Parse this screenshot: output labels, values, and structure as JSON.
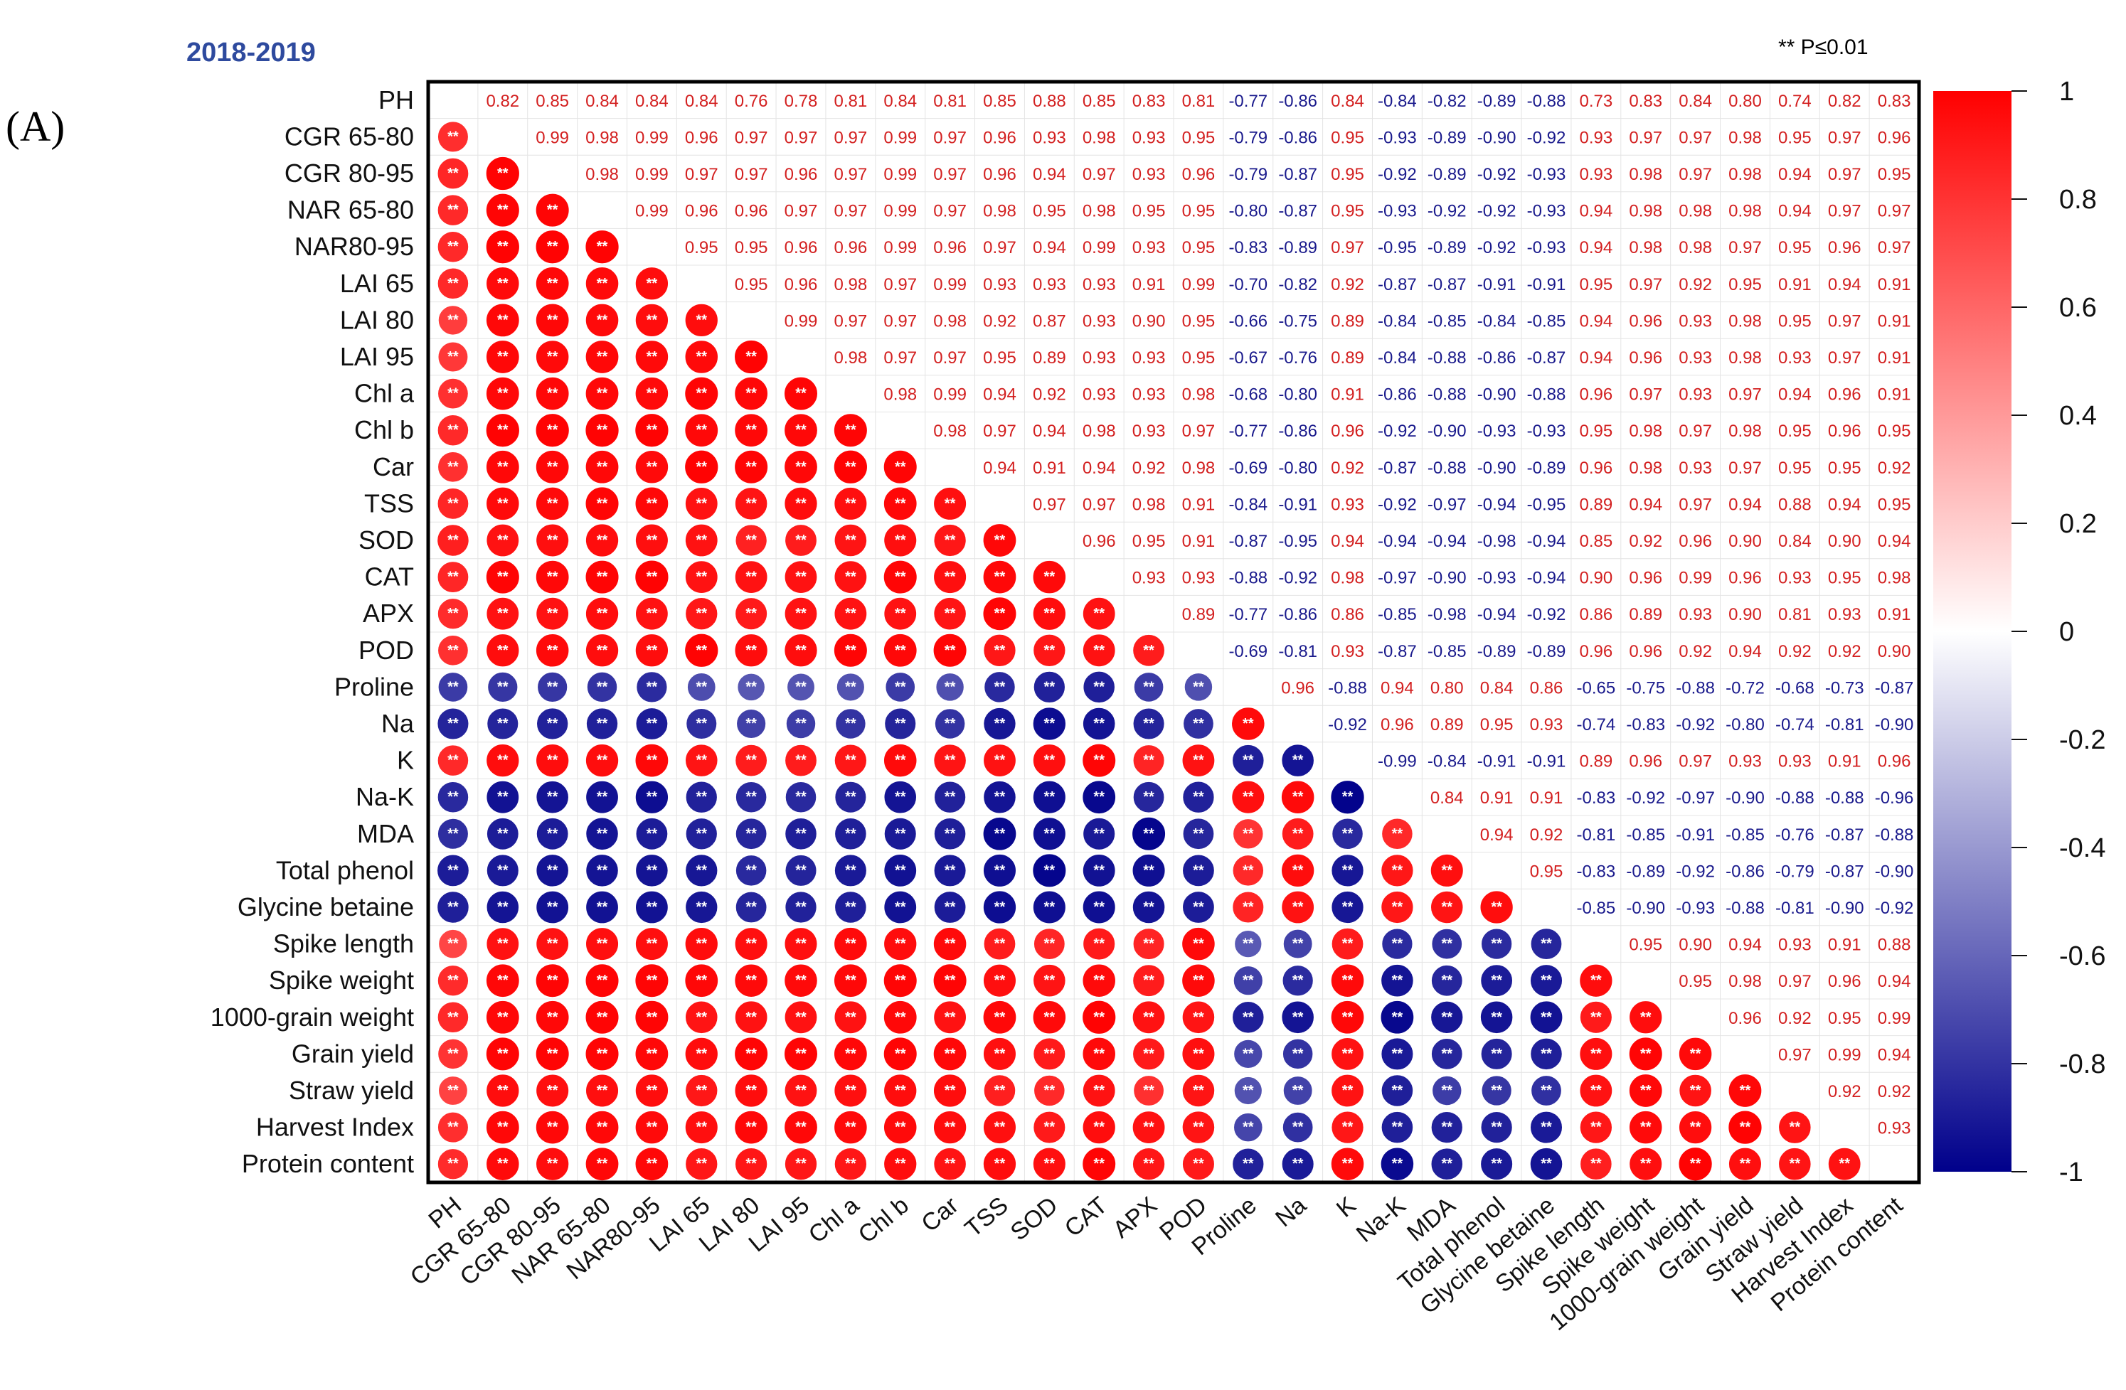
{
  "figure": {
    "panel_label": "(A)",
    "season": "2018-2019",
    "significance_note": "** P≤0.01",
    "season_color": "#2e4a9e",
    "positive_color": "#ff0000",
    "negative_color": "#00008b"
  },
  "chart_data": {
    "type": "heatmap",
    "subtype": "correlation-matrix",
    "title": "2018-2019",
    "legend": "colorbar-right",
    "colorbar_ticks": [
      "1",
      "0.8",
      "0.6",
      "0.4",
      "0.2",
      "0",
      "-0.2",
      "-0.4",
      "-0.6",
      "-0.8",
      "-1"
    ],
    "colorbar_range": [
      -1,
      1
    ],
    "variables": [
      "PH",
      "CGR  65-80",
      "CGR 80-95",
      "NAR 65-80",
      "NAR80-95",
      "LAI 65",
      "LAI 80",
      "LAI 95",
      "Chl a",
      "Chl b",
      "Car",
      "TSS",
      "SOD",
      "CAT",
      "APX",
      "POD",
      "Proline",
      "Na",
      "K",
      "Na-K",
      "MDA",
      "Total phenol",
      "Glycine betaine",
      "Spike length",
      "Spike weight",
      "1000-grain weight",
      "Grain yield",
      "Straw yield",
      "Harvest Index",
      "Protein content"
    ],
    "column_labels": [
      "PH",
      "CGR 65-80",
      "CGR 80-95",
      "NAR 65-80",
      "NAR80-95",
      "LAI 65",
      "LAI 80",
      "LAI 95",
      "Chl a",
      "Chl b",
      "Car",
      "TSS",
      "SOD",
      "CAT",
      "APX",
      "POD",
      "Proline",
      "Na",
      "K",
      "Na-K",
      "MDA",
      "Total phenol",
      "Glycine betaine",
      "Spike length",
      "Spike weight",
      "1000-grain weight",
      "Grain yield",
      "Straw yield",
      "Harvest Index",
      "Protein content"
    ],
    "upper_triangle_rows": [
      [
        "0.82",
        "0.85",
        "0.84",
        "0.84",
        "0.84",
        "0.76",
        "0.78",
        "0.81",
        "0.84",
        "0.81",
        "0.85",
        "0.88",
        "0.85",
        "0.83",
        "0.81",
        "-0.77",
        "-0.86",
        "0.84",
        "-0.84",
        "-0.82",
        "-0.89",
        "-0.88",
        "0.73",
        "0.83",
        "0.84",
        "0.80",
        "0.74",
        "0.82",
        "0.83"
      ],
      [
        "0.99",
        "0.98",
        "0.99",
        "0.96",
        "0.97",
        "0.97",
        "0.97",
        "0.99",
        "0.97",
        "0.96",
        "0.93",
        "0.98",
        "0.93",
        "0.95",
        "-0.79",
        "-0.86",
        "0.95",
        "-0.93",
        "-0.89",
        "-0.90",
        "-0.92",
        "0.93",
        "0.97",
        "0.97",
        "0.98",
        "0.95",
        "0.97",
        "0.96"
      ],
      [
        "0.98",
        "0.99",
        "0.97",
        "0.97",
        "0.96",
        "0.97",
        "0.99",
        "0.97",
        "0.96",
        "0.94",
        "0.97",
        "0.93",
        "0.96",
        "-0.79",
        "-0.87",
        "0.95",
        "-0.92",
        "-0.89",
        "-0.92",
        "-0.93",
        "0.93",
        "0.98",
        "0.97",
        "0.98",
        "0.94",
        "0.97",
        "0.95"
      ],
      [
        "0.99",
        "0.96",
        "0.96",
        "0.97",
        "0.97",
        "0.99",
        "0.97",
        "0.98",
        "0.95",
        "0.98",
        "0.95",
        "0.95",
        "-0.80",
        "-0.87",
        "0.95",
        "-0.93",
        "-0.92",
        "-0.92",
        "-0.93",
        "0.94",
        "0.98",
        "0.98",
        "0.98",
        "0.94",
        "0.97",
        "0.97"
      ],
      [
        "0.95",
        "0.95",
        "0.96",
        "0.96",
        "0.99",
        "0.96",
        "0.97",
        "0.94",
        "0.99",
        "0.93",
        "0.95",
        "-0.83",
        "-0.89",
        "0.97",
        "-0.95",
        "-0.89",
        "-0.92",
        "-0.93",
        "0.94",
        "0.98",
        "0.98",
        "0.97",
        "0.95",
        "0.96",
        "0.97"
      ],
      [
        "0.95",
        "0.96",
        "0.98",
        "0.97",
        "0.99",
        "0.93",
        "0.93",
        "0.93",
        "0.91",
        "0.99",
        "-0.70",
        "-0.82",
        "0.92",
        "-0.87",
        "-0.87",
        "-0.91",
        "-0.91",
        "0.95",
        "0.97",
        "0.92",
        "0.95",
        "0.91",
        "0.94",
        "0.91"
      ],
      [
        "0.99",
        "0.97",
        "0.97",
        "0.98",
        "0.92",
        "0.87",
        "0.93",
        "0.90",
        "0.95",
        "-0.66",
        "-0.75",
        "0.89",
        "-0.84",
        "-0.85",
        "-0.84",
        "-0.85",
        "0.94",
        "0.96",
        "0.93",
        "0.98",
        "0.95",
        "0.97",
        "0.91"
      ],
      [
        "0.98",
        "0.97",
        "0.97",
        "0.95",
        "0.89",
        "0.93",
        "0.93",
        "0.95",
        "-0.67",
        "-0.76",
        "0.89",
        "-0.84",
        "-0.88",
        "-0.86",
        "-0.87",
        "0.94",
        "0.96",
        "0.93",
        "0.98",
        "0.93",
        "0.97",
        "0.91"
      ],
      [
        "0.98",
        "0.99",
        "0.94",
        "0.92",
        "0.93",
        "0.93",
        "0.98",
        "-0.68",
        "-0.80",
        "0.91",
        "-0.86",
        "-0.88",
        "-0.90",
        "-0.88",
        "0.96",
        "0.97",
        "0.93",
        "0.97",
        "0.94",
        "0.96",
        "0.91"
      ],
      [
        "0.98",
        "0.97",
        "0.94",
        "0.98",
        "0.93",
        "0.97",
        "-0.77",
        "-0.86",
        "0.96",
        "-0.92",
        "-0.90",
        "-0.93",
        "-0.93",
        "0.95",
        "0.98",
        "0.97",
        "0.98",
        "0.95",
        "0.96",
        "0.95"
      ],
      [
        "0.94",
        "0.91",
        "0.94",
        "0.92",
        "0.98",
        "-0.69",
        "-0.80",
        "0.92",
        "-0.87",
        "-0.88",
        "-0.90",
        "-0.89",
        "0.96",
        "0.98",
        "0.93",
        "0.97",
        "0.95",
        "0.95",
        "0.92"
      ],
      [
        "0.97",
        "0.97",
        "0.98",
        "0.91",
        "-0.84",
        "-0.91",
        "0.93",
        "-0.92",
        "-0.97",
        "-0.94",
        "-0.95",
        "0.89",
        "0.94",
        "0.97",
        "0.94",
        "0.88",
        "0.94",
        "0.95"
      ],
      [
        "0.96",
        "0.95",
        "0.91",
        "-0.87",
        "-0.95",
        "0.94",
        "-0.94",
        "-0.94",
        "-0.98",
        "-0.94",
        "0.85",
        "0.92",
        "0.96",
        "0.90",
        "0.84",
        "0.90",
        "0.94"
      ],
      [
        "0.93",
        "0.93",
        "-0.88",
        "-0.92",
        "0.98",
        "-0.97",
        "-0.90",
        "-0.93",
        "-0.94",
        "0.90",
        "0.96",
        "0.99",
        "0.96",
        "0.93",
        "0.95",
        "0.98"
      ],
      [
        "0.89",
        "-0.77",
        "-0.86",
        "0.86",
        "-0.85",
        "-0.98",
        "-0.94",
        "-0.92",
        "0.86",
        "0.89",
        "0.93",
        "0.90",
        "0.81",
        "0.93",
        "0.91"
      ],
      [
        "-0.69",
        "-0.81",
        "0.93",
        "-0.87",
        "-0.85",
        "-0.89",
        "-0.89",
        "0.96",
        "0.96",
        "0.92",
        "0.94",
        "0.92",
        "0.92",
        "0.90"
      ],
      [
        "0.96",
        "-0.88",
        "0.94",
        "0.80",
        "0.84",
        "0.86",
        "-0.65",
        "-0.75",
        "-0.88",
        "-0.72",
        "-0.68",
        "-0.73",
        "-0.87"
      ],
      [
        "-0.92",
        "0.96",
        "0.89",
        "0.95",
        "0.93",
        "-0.74",
        "-0.83",
        "-0.92",
        "-0.80",
        "-0.74",
        "-0.81",
        "-0.90"
      ],
      [
        "-0.99",
        "-0.84",
        "-0.91",
        "-0.91",
        "0.89",
        "0.96",
        "0.97",
        "0.93",
        "0.93",
        "0.91",
        "0.96"
      ],
      [
        "0.84",
        "0.91",
        "0.91",
        "-0.83",
        "-0.92",
        "-0.97",
        "-0.90",
        "-0.88",
        "-0.88",
        "-0.96"
      ],
      [
        "0.94",
        "0.92",
        "-0.81",
        "-0.85",
        "-0.91",
        "-0.85",
        "-0.76",
        "-0.87",
        "-0.88"
      ],
      [
        "0.95",
        "-0.83",
        "-0.89",
        "-0.92",
        "-0.86",
        "-0.79",
        "-0.87",
        "-0.90"
      ],
      [
        "-0.85",
        "-0.90",
        "-0.93",
        "-0.88",
        "-0.81",
        "-0.90",
        "-0.92"
      ],
      [
        "0.95",
        "0.90",
        "0.94",
        "0.93",
        "0.91",
        "0.88"
      ],
      [
        "0.95",
        "0.98",
        "0.97",
        "0.96",
        "0.94"
      ],
      [
        "0.96",
        "0.92",
        "0.95",
        "0.99"
      ],
      [
        "0.97",
        "0.99",
        "0.94"
      ],
      [
        "0.92",
        "0.92"
      ],
      [
        "0.93"
      ]
    ],
    "lower_triangle_mark": "**"
  }
}
